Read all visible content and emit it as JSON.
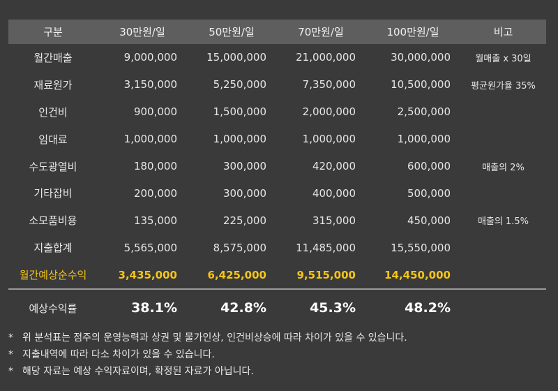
{
  "table": {
    "headers": [
      "구분",
      "30만원/일",
      "50만원/일",
      "70만원/일",
      "100만원/일",
      "비고"
    ],
    "rows": [
      {
        "label": "월간매출",
        "values": [
          "9,000,000",
          "15,000,000",
          "21,000,000",
          "30,000,000"
        ],
        "note": "월매출 x 30일"
      },
      {
        "label": "재료원가",
        "values": [
          "3,150,000",
          "5,250,000",
          "7,350,000",
          "10,500,000"
        ],
        "note": "평균원가율 35%"
      },
      {
        "label": "인건비",
        "values": [
          "900,000",
          "1,500,000",
          "2,000,000",
          "2,500,000"
        ],
        "note": ""
      },
      {
        "label": "임대료",
        "values": [
          "1,000,000",
          "1,000,000",
          "1,000,000",
          "1,000,000"
        ],
        "note": ""
      },
      {
        "label": "수도광열비",
        "values": [
          "180,000",
          "300,000",
          "420,000",
          "600,000"
        ],
        "note": "매출의 2%"
      },
      {
        "label": "기타잡비",
        "values": [
          "200,000",
          "300,000",
          "400,000",
          "500,000"
        ],
        "note": ""
      },
      {
        "label": "소모품비용",
        "values": [
          "135,000",
          "225,000",
          "315,000",
          "450,000"
        ],
        "note": "매출의 1.5%"
      },
      {
        "label": "지출합계",
        "values": [
          "5,565,000",
          "8,575,000",
          "11,485,000",
          "15,550,000"
        ],
        "note": ""
      },
      {
        "label": "월간예상순수익",
        "values": [
          "3,435,000",
          "6,425,000",
          "9,515,000",
          "14,450,000"
        ],
        "note": ""
      }
    ],
    "summary": {
      "label": "예상수익률",
      "values": [
        "38.1%",
        "42.8%",
        "45.3%",
        "48.2%"
      ]
    }
  },
  "colors": {
    "background": "#3a3a3a",
    "header_background": "#5e5e5e",
    "highlight": "#f5c518"
  },
  "notes": [
    {
      "mark": "*",
      "text": "위 분석표는 점주의 운영능력과 상권 및 물가인상, 인건비상승에 따라 차이가 있을 수 있습니다."
    },
    {
      "mark": "*",
      "text": "지출내역에 따라 다소 차이가 있을 수 있습니다."
    },
    {
      "mark": "*",
      "text": "해당 자료는 예상 수익자료이며, 확정된 자료가 아닙니다."
    }
  ]
}
